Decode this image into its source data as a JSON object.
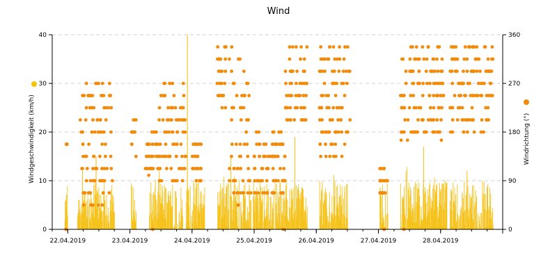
{
  "chart_data": {
    "type": "bar+scatter",
    "title": "Wind",
    "x_axis": {
      "tick_labels": [
        "22.04.2019",
        "23.04.2019",
        "24.04.2019",
        "25.04.2019",
        "26.04.2019",
        "27.04.2019",
        "28.04.2019"
      ],
      "range_days": [
        21.75,
        29.0
      ]
    },
    "y_left": {
      "label": "Windgeschwindigkeit (km/h)",
      "range": [
        0,
        40
      ],
      "ticks": [
        "0",
        "10",
        "20",
        "30",
        "40"
      ]
    },
    "y_right": {
      "label": "Windrichtung (°)",
      "range": [
        0,
        360
      ],
      "ticks": [
        "0",
        "90",
        "180",
        "270",
        "360"
      ]
    },
    "grid": true,
    "colors": {
      "speed": "#f5c21b",
      "direction": "#f28a0a",
      "legend_speed_dot": "#f5c400",
      "legend_direction_dot": "#f28a0a",
      "grid": "#d0d0d0",
      "axis": "#000000"
    },
    "series": [
      {
        "name": "Windgeschwindigkeit (km/h)",
        "kind": "bars",
        "active_intervals_days": [
          [
            21.95,
            22.0
          ],
          [
            22.15,
            22.75
          ],
          [
            23.02,
            23.1
          ],
          [
            23.3,
            23.85
          ],
          [
            23.9,
            24.2
          ],
          [
            24.4,
            24.95
          ],
          [
            24.98,
            25.85
          ],
          [
            26.05,
            26.5
          ],
          [
            27.02,
            27.15
          ],
          [
            27.35,
            28.1
          ],
          [
            28.15,
            28.85
          ]
        ],
        "peaks": [
          {
            "day": 22.23,
            "value": 12
          },
          {
            "day": 22.45,
            "value": 15
          },
          {
            "day": 23.92,
            "value": 40
          },
          {
            "day": 24.62,
            "value": 15
          },
          {
            "day": 25.65,
            "value": 19
          },
          {
            "day": 27.72,
            "value": 17
          },
          {
            "day": 28.42,
            "value": 12
          }
        ],
        "typical_max": 10
      },
      {
        "name": "Windrichtung (°)",
        "kind": "points",
        "clusters": [
          {
            "x_range": [
              21.97,
              22.0
            ],
            "y_range": [
              150,
              160
            ]
          },
          {
            "x_range": [
              22.2,
              22.72
            ],
            "y_range": [
              40,
              270
            ]
          },
          {
            "x_range": [
              23.02,
              23.1
            ],
            "y_range": [
              135,
              205
            ]
          },
          {
            "x_range": [
              23.25,
              23.45
            ],
            "y_range": [
              100,
              180
            ]
          },
          {
            "x_range": [
              23.45,
              23.9
            ],
            "y_range": [
              90,
              270
            ]
          },
          {
            "x_range": [
              24.0,
              24.15
            ],
            "y_range": [
              90,
              170
            ]
          },
          {
            "x_range": [
              24.4,
              24.55
            ],
            "y_range": [
              225,
              340
            ]
          },
          {
            "x_range": [
              24.6,
              24.95
            ],
            "y_range": [
              45,
              340
            ]
          },
          {
            "x_range": [
              25.0,
              25.5
            ],
            "y_range": [
              60,
              180
            ]
          },
          {
            "x_range": [
              25.5,
              25.85
            ],
            "y_range": [
              190,
              340
            ]
          },
          {
            "x_range": [
              26.05,
              26.55
            ],
            "y_range": [
              135,
              340
            ]
          },
          {
            "x_range": [
              27.02,
              27.15
            ],
            "y_range": [
              50,
              115
            ]
          },
          {
            "x_range": [
              27.35,
              28.05
            ],
            "y_range": [
              165,
              340
            ]
          },
          {
            "x_range": [
              28.15,
              28.85
            ],
            "y_range": [
              180,
              340
            ]
          }
        ]
      }
    ],
    "legend": [
      {
        "name": "Windgeschwindigkeit (km/h)",
        "placement": "left-axis"
      },
      {
        "name": "Windrichtung (°)",
        "placement": "right-axis"
      }
    ]
  }
}
